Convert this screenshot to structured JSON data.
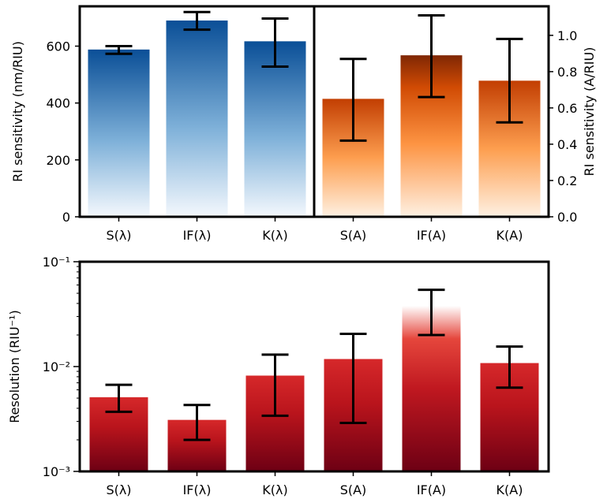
{
  "chart_data": [
    {
      "type": "bar",
      "title": "",
      "ylabel": "RI sensitivity (nm/RIU)",
      "yscale": "linear",
      "ylim": [
        0,
        740
      ],
      "yticks": [
        0,
        200,
        400,
        600
      ],
      "ytick_labels": [
        "0",
        "200",
        "400",
        "600"
      ],
      "categories": [
        "S(λ)",
        "IF(λ)",
        "K(λ)"
      ],
      "values": [
        588,
        690,
        617
      ],
      "err_low": [
        573,
        658,
        528
      ],
      "err_high": [
        600,
        720,
        697
      ],
      "colormap": "Blues"
    },
    {
      "type": "bar",
      "title": "",
      "ylabel": "RI sensitivity (A/RIU)",
      "yscale": "linear",
      "ylim": [
        0,
        1.16
      ],
      "yticks": [
        0.0,
        0.2,
        0.4,
        0.6,
        0.8,
        1.0
      ],
      "ytick_labels": [
        "0.0",
        "0.2",
        "0.4",
        "0.6",
        "0.8",
        "1.0"
      ],
      "categories": [
        "S(A)",
        "IF(A)",
        "K(A)"
      ],
      "values": [
        0.65,
        0.89,
        0.75
      ],
      "err_low": [
        0.42,
        0.66,
        0.52
      ],
      "err_high": [
        0.87,
        1.11,
        0.98
      ],
      "colormap": "Oranges"
    },
    {
      "type": "bar",
      "title": "",
      "ylabel": "Resolution (RIU⁻¹)",
      "yscale": "log",
      "ylim": [
        0.001,
        0.1
      ],
      "ytick_labels": [
        "10⁻³",
        "10⁻²",
        "10⁻¹"
      ],
      "categories": [
        "S(λ)",
        "IF(λ)",
        "K(λ)",
        "S(A)",
        "IF(A)",
        "K(A)"
      ],
      "values": [
        0.0051,
        0.0031,
        0.0082,
        0.0118,
        0.038,
        0.0108
      ],
      "err_low": [
        0.0037,
        0.002,
        0.0034,
        0.0029,
        0.02,
        0.0063
      ],
      "err_high": [
        0.0067,
        0.0043,
        0.013,
        0.0205,
        0.054,
        0.0155
      ],
      "colormap": "Reds"
    }
  ]
}
